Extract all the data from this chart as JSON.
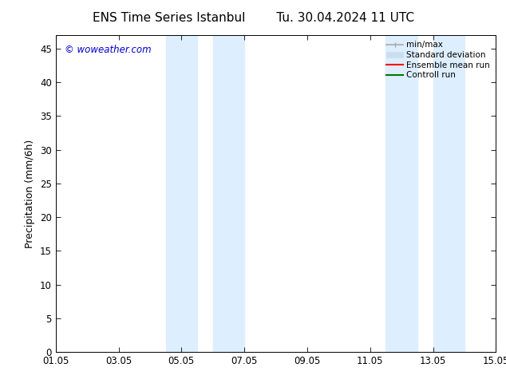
{
  "title_left": "ENS Time Series Istanbul",
  "title_right": "Tu. 30.04.2024 11 UTC",
  "ylabel": "Precipitation (mm/6h)",
  "xlabel": "",
  "xlim": [
    0,
    14
  ],
  "xtick_labels": [
    "01.05",
    "03.05",
    "05.05",
    "07.05",
    "09.05",
    "11.05",
    "13.05",
    "15.05"
  ],
  "xtick_positions": [
    0,
    2,
    4,
    6,
    8,
    10,
    12,
    14
  ],
  "ylim": [
    0,
    47
  ],
  "yticks": [
    0,
    5,
    10,
    15,
    20,
    25,
    30,
    35,
    40,
    45
  ],
  "bg_color": "#ffffff",
  "plot_bg_color": "#ffffff",
  "night_bands": [
    {
      "x_start": 3.5,
      "x_end": 4.5
    },
    {
      "x_start": 5.0,
      "x_end": 6.0
    },
    {
      "x_start": 10.5,
      "x_end": 11.5
    },
    {
      "x_start": 12.0,
      "x_end": 13.0
    }
  ],
  "band_color": "#ddeeff",
  "watermark_text": "© woweather.com",
  "watermark_color": "#0000cc",
  "legend_items": [
    {
      "label": "min/max",
      "color": "#aaaaaa",
      "lw": 1.2,
      "style": "solid"
    },
    {
      "label": "Standard deviation",
      "color": "#c8dff0",
      "lw": 8,
      "style": "solid"
    },
    {
      "label": "Ensemble mean run",
      "color": "#ff0000",
      "lw": 1.5,
      "style": "solid"
    },
    {
      "label": "Controll run",
      "color": "#007700",
      "lw": 1.5,
      "style": "solid"
    }
  ],
  "title_fontsize": 11,
  "tick_fontsize": 8.5,
  "label_fontsize": 9
}
